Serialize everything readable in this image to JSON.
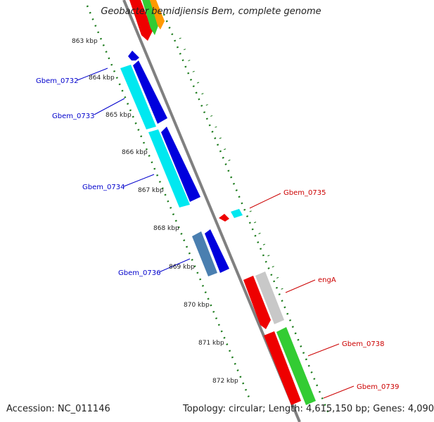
{
  "title": "Geobacter bemidjiensis Bem, complete genome",
  "footer": {
    "accession": "Accession: NC_011146",
    "summary": "Topology: circular; Length: 4,615,150 bp; Genes: 4,090"
  },
  "ticks": [
    "863 kbp",
    "864 kbp",
    "865 kbp",
    "866 kbp",
    "867 kbp",
    "868 kbp",
    "869 kbp",
    "870 kbp",
    "871 kbp",
    "872 kbp"
  ],
  "genes": {
    "left": [
      "Gbem_0732",
      "Gbem_0733",
      "Gbem_0734",
      "Gbem_0736"
    ],
    "right": [
      "Gbem_0735",
      "engA",
      "Gbem_0738",
      "Gbem_0739"
    ]
  },
  "colors": {
    "cyan": "#00e8f0",
    "blue": "#0000dd",
    "steel": "#4a7fb0",
    "red": "#ee0000",
    "gray": "#c8c8c8",
    "green": "#33cc33",
    "orange": "#ff9900",
    "dotted_track": "#1a7a1a",
    "backbone": "#808080"
  }
}
